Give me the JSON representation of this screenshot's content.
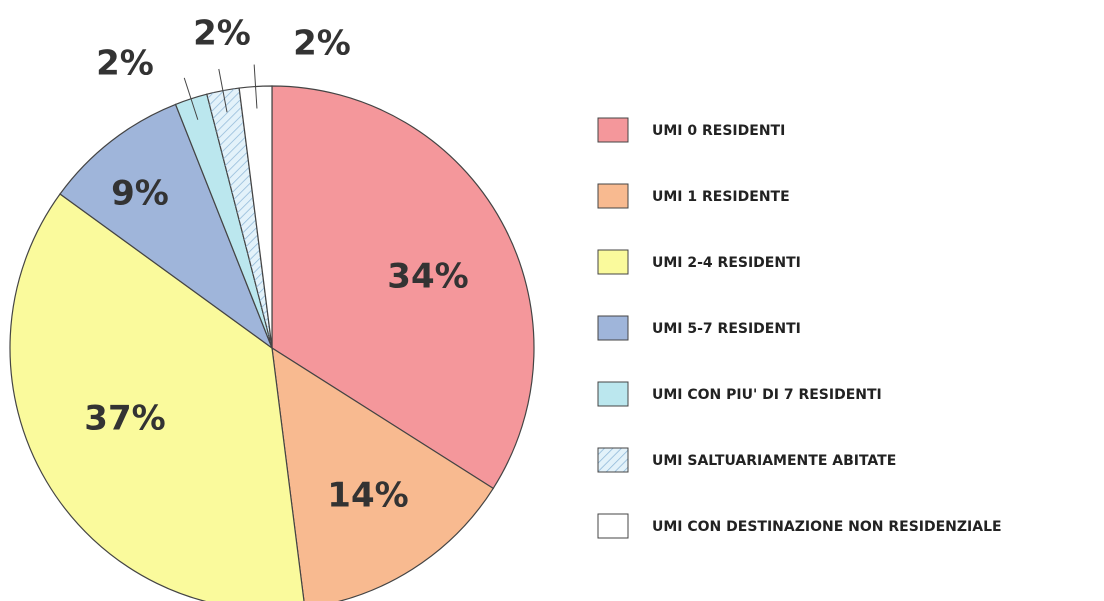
{
  "chart_data": {
    "type": "pie",
    "categories": [
      "UMI 0 RESIDENTI",
      "UMI 1 RESIDENTE",
      "UMI 2-4 RESIDENTI",
      "UMI 5-7 RESIDENTI",
      "UMI CON PIU' DI 7 RESIDENTI",
      "UMI SALTUARIAMENTE ABITATE",
      "UMI CON DESTINAZIONE NON RESIDENZIALE"
    ],
    "values": [
      34,
      14,
      37,
      9,
      2,
      2,
      2
    ],
    "value_labels": [
      "34%",
      "14%",
      "37%",
      "9%",
      "2%",
      "2%",
      "2%"
    ],
    "colors": [
      "#f4979b",
      "#f8ba90",
      "#fafa9c",
      "#9fb5da",
      "#bbe7ee",
      "#e3f2fa",
      "#ffffff"
    ],
    "hatch": [
      false,
      false,
      false,
      false,
      false,
      true,
      false
    ],
    "legend": "right"
  }
}
